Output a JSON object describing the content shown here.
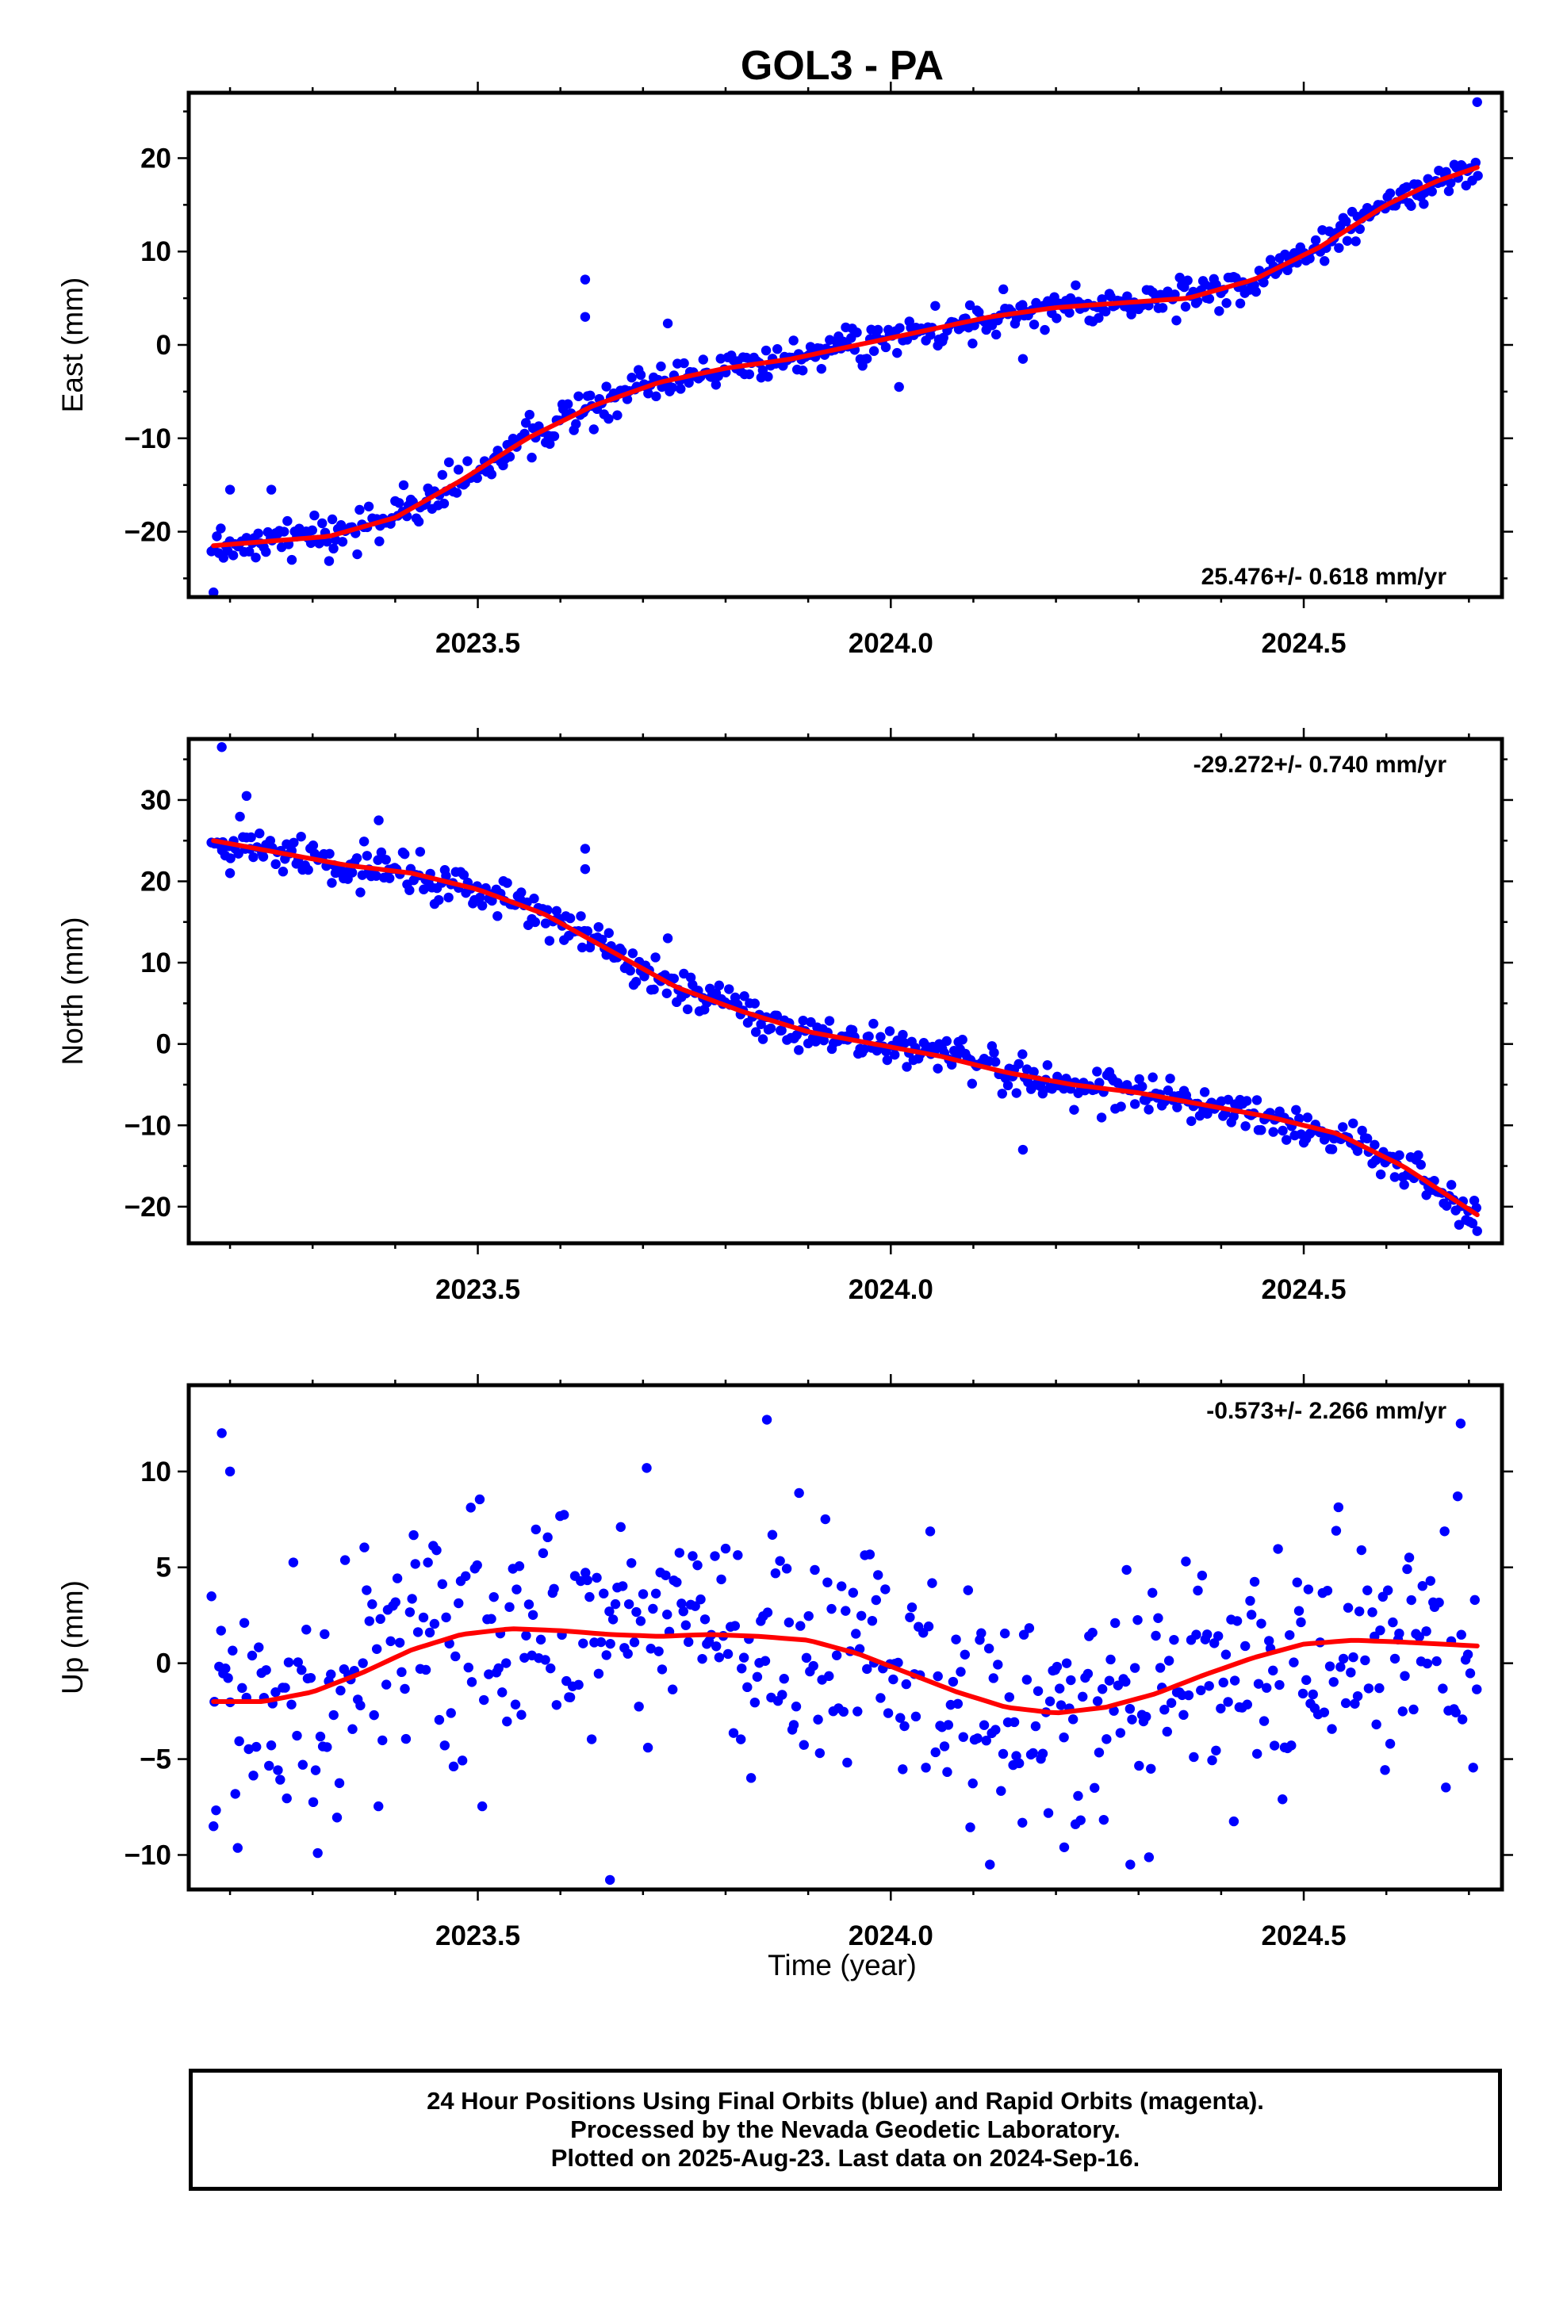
{
  "title": "GOL3 - PA",
  "xlabel": "Time (year)",
  "x_ticks": [
    "2023.5",
    "2024.0",
    "2024.5"
  ],
  "footer": {
    "line1": "24 Hour Positions Using Final Orbits (blue) and Rapid Orbits (magenta).",
    "line2": "Processed by the Nevada Geodetic Laboratory.",
    "line3": "Plotted on 2025-Aug-23. Last data on 2024-Sep-16."
  },
  "colors": {
    "final_orbits": "#0000ff",
    "trend": "#ff0000",
    "frame": "#000000"
  },
  "chart_data": [
    {
      "type": "scatter",
      "ylabel": "East (mm)",
      "rate_label": "25.476+/- 0.618 mm/yr",
      "rate_label_position": "bottom-right",
      "xlim": [
        2023.15,
        2024.74
      ],
      "ylim": [
        -27,
        27
      ],
      "y_ticks": [
        -20,
        -10,
        0,
        10,
        20
      ],
      "trend_x": [
        2023.18,
        2023.25,
        2023.32,
        2023.4,
        2023.48,
        2023.56,
        2023.64,
        2023.72,
        2023.8,
        2023.88,
        2023.96,
        2024.04,
        2024.12,
        2024.2,
        2024.28,
        2024.36,
        2024.44,
        2024.52,
        2024.6,
        2024.66,
        2024.71
      ],
      "trend_y": [
        -21.5,
        -21,
        -20.5,
        -18.5,
        -14.5,
        -10,
        -6.5,
        -4,
        -2.5,
        -1.5,
        0,
        1.5,
        3,
        4,
        4.5,
        5,
        7,
        10.5,
        15,
        17.5,
        19
      ],
      "outliers": {
        "x": [
          2023.18,
          2023.2,
          2023.25,
          2023.63,
          2023.63,
          2023.73,
          2024.01,
          2024.16,
          2024.71
        ],
        "y": [
          -26.5,
          -15.5,
          -15.5,
          7,
          3,
          2.3,
          -4.5,
          -1.5,
          26
        ]
      }
    },
    {
      "type": "scatter",
      "ylabel": "North (mm)",
      "rate_label": "-29.272+/- 0.740 mm/yr",
      "rate_label_position": "top-right",
      "xlim": [
        2023.15,
        2024.74
      ],
      "ylim": [
        -24.5,
        37.5
      ],
      "y_ticks": [
        -20,
        -10,
        0,
        10,
        20,
        30
      ],
      "trend_x": [
        2023.18,
        2023.26,
        2023.34,
        2023.42,
        2023.5,
        2023.58,
        2023.66,
        2023.74,
        2023.82,
        2023.9,
        2023.98,
        2024.06,
        2024.14,
        2024.22,
        2024.3,
        2024.38,
        2024.46,
        2024.54,
        2024.62,
        2024.68,
        2024.71
      ],
      "trend_y": [
        25,
        23.5,
        22,
        21,
        19,
        16,
        11.5,
        7,
        4,
        1.5,
        0,
        -1.5,
        -3.5,
        -5,
        -6,
        -7.5,
        -9,
        -11,
        -15,
        -19,
        -21
      ],
      "outliers": {
        "x": [
          2023.19,
          2023.2,
          2023.22,
          2023.38,
          2023.63,
          2023.63,
          2023.73,
          2024.16,
          2024.71
        ],
        "y": [
          36.5,
          21,
          30.5,
          27.5,
          24,
          21.5,
          13,
          -13,
          -23
        ]
      }
    },
    {
      "type": "scatter",
      "ylabel": "Up (mm)",
      "xlabel": "Time (year)",
      "rate_label": "-0.573+/- 2.266 mm/yr",
      "rate_label_position": "top-right",
      "xlim": [
        2023.15,
        2024.74
      ],
      "ylim": [
        -11.8,
        14.5
      ],
      "y_ticks": [
        -10,
        -5,
        0,
        5,
        10
      ],
      "trend_x": [
        2023.18,
        2023.24,
        2023.3,
        2023.36,
        2023.42,
        2023.48,
        2023.54,
        2023.6,
        2023.66,
        2023.72,
        2023.78,
        2023.84,
        2023.9,
        2023.96,
        2024.02,
        2024.08,
        2024.14,
        2024.2,
        2024.26,
        2024.32,
        2024.38,
        2024.44,
        2024.5,
        2024.56,
        2024.62,
        2024.71
      ],
      "trend_y": [
        -2,
        -2,
        -1.5,
        -0.5,
        0.7,
        1.5,
        1.8,
        1.7,
        1.5,
        1.4,
        1.5,
        1.4,
        1.2,
        0.5,
        -0.5,
        -1.5,
        -2.3,
        -2.6,
        -2.3,
        -1.6,
        -0.6,
        0.3,
        1,
        1.2,
        1.1,
        0.9
      ],
      "outliers": {
        "x": [
          2023.18,
          2023.19,
          2023.2,
          2023.66,
          2023.85,
          2024.12,
          2024.21,
          2024.29,
          2024.69
        ],
        "y": [
          -8.5,
          12,
          10,
          -11.3,
          12.7,
          -10.5,
          -9.6,
          -10.5,
          12.5
        ]
      }
    }
  ]
}
